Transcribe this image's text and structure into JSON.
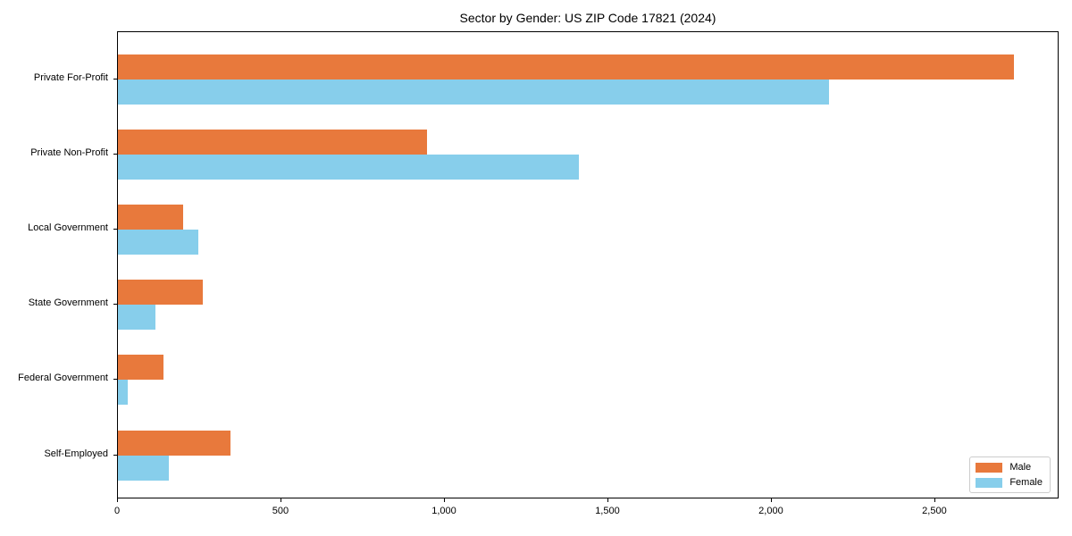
{
  "title": "Sector by Gender: US ZIP Code 17821 (2024)",
  "chart_data": {
    "type": "bar",
    "orientation": "horizontal",
    "title": "Sector by Gender: US ZIP Code 17821 (2024)",
    "xlabel": "",
    "ylabel": "",
    "categories": [
      "Private For-Profit",
      "Private Non-Profit",
      "Local Government",
      "State Government",
      "Federal Government",
      "Self-Employed"
    ],
    "series": [
      {
        "name": "Male",
        "color": "#E8793C",
        "values": [
          2740,
          945,
          200,
          260,
          140,
          345
        ]
      },
      {
        "name": "Female",
        "color": "#87CEEB",
        "values": [
          2175,
          1410,
          245,
          115,
          30,
          155
        ]
      }
    ],
    "xlim": [
      0,
      2880
    ],
    "xticks": [
      0,
      500,
      1000,
      1500,
      2000,
      2500
    ],
    "xtick_labels": [
      "0",
      "500",
      "1,000",
      "1,500",
      "2,000",
      "2,500"
    ],
    "grid": false,
    "plot_background": "#ffffff",
    "spine_color": "#000000",
    "legend_position": "lower right"
  }
}
